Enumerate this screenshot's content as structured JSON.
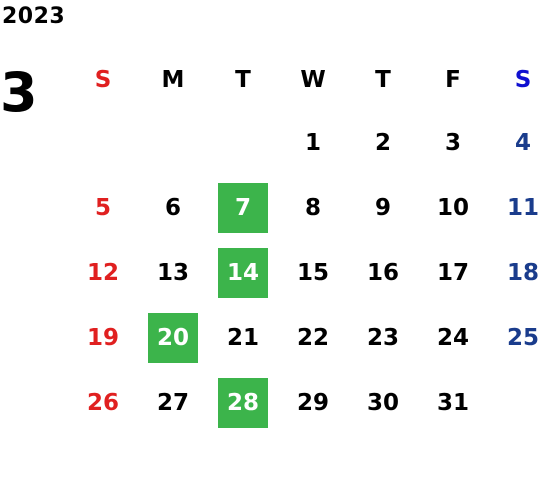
{
  "year": "2023",
  "month": "3",
  "colors": {
    "sunday": "#e02020",
    "saturday": "#1a3c8c",
    "saturday_header": "#1010d0",
    "weekday": "#000000",
    "highlight_bg": "#3cb44b",
    "highlight_text": "#ffffff"
  },
  "weekdays": [
    "S",
    "M",
    "T",
    "W",
    "T",
    "F",
    "S"
  ],
  "weeks": [
    [
      "",
      "",
      "",
      "1",
      "2",
      "3",
      "4"
    ],
    [
      "5",
      "6",
      "7",
      "8",
      "9",
      "10",
      "11"
    ],
    [
      "12",
      "13",
      "14",
      "15",
      "16",
      "17",
      "18"
    ],
    [
      "19",
      "20",
      "21",
      "22",
      "23",
      "24",
      "25"
    ],
    [
      "26",
      "27",
      "28",
      "29",
      "30",
      "31",
      ""
    ]
  ],
  "highlighted": [
    "7",
    "14",
    "20",
    "28"
  ]
}
